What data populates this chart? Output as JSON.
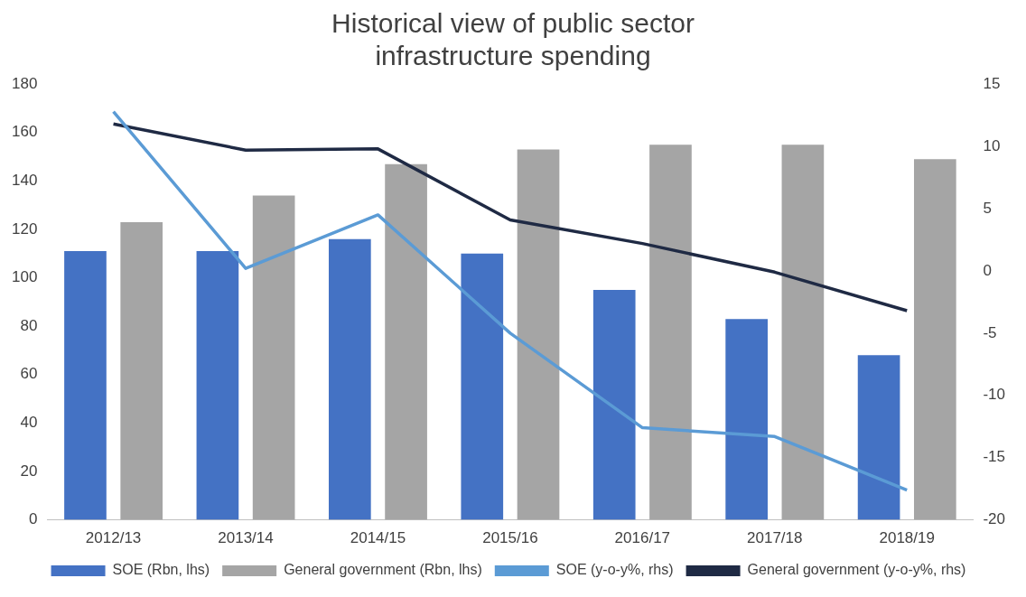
{
  "chart_data": {
    "type": "bar",
    "title": "Historical view of public sector infrastructure spending",
    "categories": [
      "2012/13",
      "2013/14",
      "2014/15",
      "2015/16",
      "2016/17",
      "2017/18",
      "2018/19"
    ],
    "series": [
      {
        "name": "SOE (Rbn, lhs)",
        "color": "#4472c4",
        "values": [
          111,
          111,
          116,
          110,
          95,
          83,
          68
        ]
      },
      {
        "name": "General government (Rbn, lhs)",
        "color": "#a5a5a5",
        "values": [
          123,
          134,
          147,
          153,
          155,
          155,
          149
        ]
      },
      {
        "name": "SOE (y-o-y%, rhs)",
        "type": "line",
        "axis": "y2",
        "color": "#5b9bd5",
        "values": [
          12.8,
          0.2,
          4.5,
          -5,
          -12.6,
          -13.3,
          -17.6
        ]
      },
      {
        "name": "General government (y-o-y%, rhs)",
        "type": "line",
        "axis": "y2",
        "color": "#1f2a44",
        "values": [
          11.8,
          9.7,
          9.8,
          4.1,
          2.2,
          -0.1,
          -3.2
        ]
      }
    ],
    "ylim": [
      0,
      180
    ],
    "yticks": [
      0,
      20,
      40,
      60,
      80,
      100,
      120,
      140,
      160,
      180
    ],
    "y2lim": [
      -20,
      15
    ],
    "y2ticks": [
      -20,
      -15,
      -10,
      -5,
      0,
      5,
      10,
      15
    ],
    "grid": false,
    "legend": "bottom",
    "marker": "none",
    "line_style": "solid"
  }
}
